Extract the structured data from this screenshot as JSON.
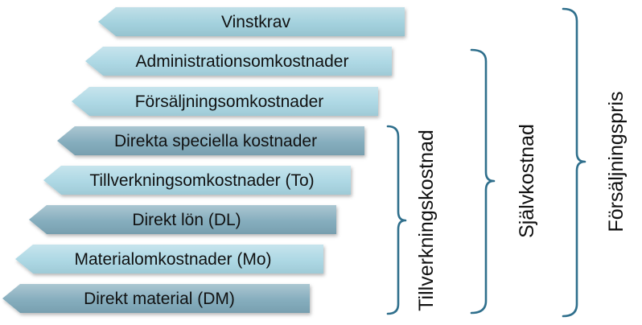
{
  "bars": [
    {
      "label": "Vinstkrav",
      "color": "#9fcfdc"
    },
    {
      "label": "Administrationsomkostnader",
      "color": "#a9d6e3"
    },
    {
      "label": "Försäljningsomkostnader",
      "color": "#a9d6e3"
    },
    {
      "label": "Direkta speciella kostnader",
      "color": "#7fa9ba"
    },
    {
      "label": "Tillverkningsomkostnader (To)",
      "color": "#a9d6e3"
    },
    {
      "label": "Direkt lön (DL)",
      "color": "#7fa9ba"
    },
    {
      "label": "Materialomkostnader (Mo)",
      "color": "#a9d6e3"
    },
    {
      "label": "Direkt material (DM)",
      "color": "#7fa9ba"
    }
  ],
  "brackets": {
    "tillverkningskostnad": "Tillverkningskostnad",
    "sjalvkostnad": "Självkostnad",
    "forsaljningspris": "Försäljningspris"
  },
  "colors": {
    "bracket": "#2f6f8c",
    "text": "#111111"
  }
}
